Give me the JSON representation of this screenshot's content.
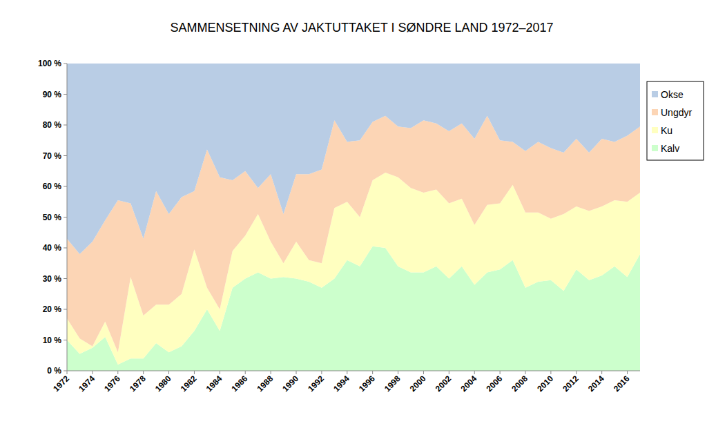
{
  "chart_data": {
    "type": "area",
    "stacked": true,
    "title": "SAMMENSETNING AV JAKTUTTAKET I SØNDRE LAND 1972–2017",
    "x": [
      1972,
      1973,
      1974,
      1975,
      1976,
      1977,
      1978,
      1979,
      1980,
      1981,
      1982,
      1983,
      1984,
      1985,
      1986,
      1987,
      1988,
      1989,
      1990,
      1991,
      1992,
      1993,
      1994,
      1995,
      1996,
      1997,
      1998,
      1999,
      2000,
      2001,
      2002,
      2003,
      2004,
      2005,
      2006,
      2007,
      2008,
      2009,
      2010,
      2011,
      2012,
      2013,
      2014,
      2015,
      2016,
      2017
    ],
    "xlim": [
      1972,
      2017
    ],
    "xticks": [
      1972,
      1974,
      1976,
      1978,
      1980,
      1982,
      1984,
      1986,
      1988,
      1990,
      1992,
      1994,
      1996,
      1998,
      2000,
      2002,
      2004,
      2006,
      2008,
      2010,
      2012,
      2014,
      2016
    ],
    "ylim": [
      0,
      100
    ],
    "yticks": [
      {
        "value": 0,
        "label": "0 %"
      },
      {
        "value": 10,
        "label": "10 %"
      },
      {
        "value": 20,
        "label": "20 %"
      },
      {
        "value": 30,
        "label": "30 %"
      },
      {
        "value": 40,
        "label": "40 %"
      },
      {
        "value": 50,
        "label": "50 %"
      },
      {
        "value": 60,
        "label": "60 %"
      },
      {
        "value": 70,
        "label": "70 %"
      },
      {
        "value": 80,
        "label": "80 %"
      },
      {
        "value": 90,
        "label": "90 %"
      },
      {
        "value": 100,
        "label": "100 %"
      }
    ],
    "grid": false,
    "legend": "right",
    "series": [
      {
        "name": "Kalv",
        "color": "#ccffcc",
        "values": [
          10,
          5.5,
          7.5,
          11,
          2,
          4,
          4,
          9,
          6,
          8,
          13,
          20,
          13,
          27,
          30,
          32,
          30,
          30.5,
          30,
          29,
          27,
          30,
          36,
          34,
          40.5,
          40,
          34,
          32,
          32,
          34,
          30,
          34,
          28,
          32,
          33,
          36,
          27,
          29,
          29.5,
          26,
          33,
          29.5,
          31,
          34,
          30.5,
          38
        ]
      },
      {
        "name": "Ku",
        "color": "#ffffc0",
        "values": [
          7,
          5,
          0.5,
          5,
          4,
          26.5,
          14,
          12.5,
          15.5,
          17,
          26.5,
          7,
          7,
          12,
          14,
          19,
          12,
          4.5,
          12,
          7,
          8,
          23,
          19,
          16,
          21.5,
          24.5,
          29,
          27.5,
          26,
          25,
          24.5,
          22,
          19.5,
          22,
          21.5,
          24.5,
          24.5,
          22.5,
          20,
          25,
          20.5,
          22.5,
          22.5,
          21.5,
          24.5,
          20
        ]
      },
      {
        "name": "Ungdyr",
        "color": "#fcd5b5",
        "values": [
          26,
          27.5,
          34,
          33,
          49.5,
          24,
          25,
          37,
          29.5,
          31.5,
          19,
          45,
          43,
          23,
          21,
          8.5,
          22,
          16,
          22,
          28,
          30.5,
          28.5,
          19.5,
          25,
          19,
          18.5,
          16.5,
          19.5,
          23.5,
          21.5,
          23.5,
          24.5,
          28,
          29,
          20.5,
          14,
          20,
          23,
          23,
          20,
          22,
          19,
          22,
          19,
          21.5,
          21.5
        ]
      },
      {
        "name": "Okse",
        "color": "#b9cde5",
        "values": [
          57,
          62,
          58,
          51,
          44.5,
          45.5,
          57,
          41.5,
          49,
          43.5,
          41.5,
          28,
          37,
          38,
          35,
          40.5,
          36,
          49,
          36,
          36,
          34.5,
          18.5,
          25.5,
          25,
          19,
          17,
          20.5,
          21,
          18.5,
          19.5,
          22,
          19.5,
          24.5,
          17,
          25,
          25.5,
          28.5,
          25.5,
          27.5,
          29,
          24.5,
          29,
          24.5,
          25.5,
          23.5,
          20.5
        ]
      }
    ]
  }
}
